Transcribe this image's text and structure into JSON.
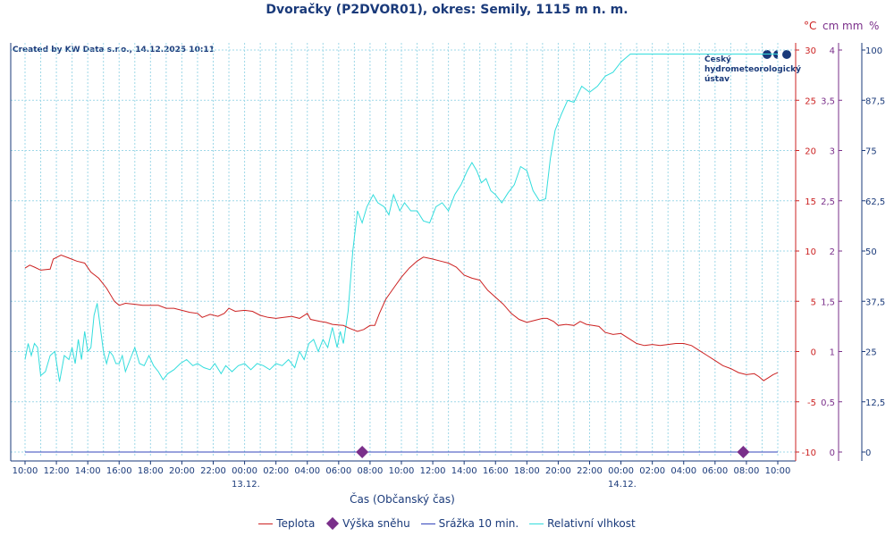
{
  "chart_data": {
    "type": "line",
    "title": "Dvoračky (P2DVOR01), okres: Semily, 1115 m n. m.",
    "credit": "Created by KW Data s.r.o., 14.12.2025 10:11",
    "xlabel": "Čas (Občanský čas)",
    "x_ticks": [
      "10:00",
      "12:00",
      "14:00",
      "16:00",
      "18:00",
      "20:00",
      "22:00",
      "00:00",
      "02:00",
      "04:00",
      "06:00",
      "08:00",
      "10:00",
      "12:00",
      "14:00",
      "16:00",
      "18:00",
      "20:00",
      "22:00",
      "00:00",
      "02:00",
      "04:00",
      "06:00",
      "08:00",
      "10:00"
    ],
    "x_range_hours": [
      0,
      48
    ],
    "date_labels": [
      {
        "label": "13.12.",
        "hour": 14
      },
      {
        "label": "14.12.",
        "hour": 38
      }
    ],
    "units": {
      "temp": "°C",
      "snow": "cm",
      "precip": "mm",
      "humidity": "%"
    },
    "axes": {
      "temp": {
        "range": [
          -10,
          30
        ],
        "ticks": [
          "-10",
          "-5",
          "0",
          "5",
          "10",
          "15",
          "20",
          "25",
          "30"
        ],
        "color": "#cc2222"
      },
      "snow": {
        "range": [
          0,
          4
        ],
        "ticks": [
          "0",
          "0,5",
          "1",
          "1,5",
          "2",
          "2,5",
          "3",
          "3,5",
          "4"
        ],
        "color": "#7a2f8a"
      },
      "humidity": {
        "range": [
          0,
          100
        ],
        "ticks": [
          "0",
          "12,5",
          "25",
          "37,5",
          "50",
          "62,5",
          "75",
          "87,5",
          "100"
        ],
        "color": "#1a3a7a"
      }
    },
    "series": [
      {
        "name": "Teplota",
        "axis": "temp",
        "color": "#cc2222",
        "points": [
          [
            0,
            8.3
          ],
          [
            0.3,
            8.6
          ],
          [
            0.6,
            8.4
          ],
          [
            1,
            8.1
          ],
          [
            1.6,
            8.2
          ],
          [
            1.8,
            9.2
          ],
          [
            2.3,
            9.6
          ],
          [
            2.8,
            9.3
          ],
          [
            3.3,
            9.0
          ],
          [
            3.8,
            8.8
          ],
          [
            4.2,
            7.9
          ],
          [
            4.7,
            7.3
          ],
          [
            5.2,
            6.3
          ],
          [
            5.7,
            5.0
          ],
          [
            6.0,
            4.6
          ],
          [
            6.4,
            4.8
          ],
          [
            7,
            4.7
          ],
          [
            7.5,
            4.6
          ],
          [
            8,
            4.6
          ],
          [
            8.5,
            4.6
          ],
          [
            9,
            4.3
          ],
          [
            9.5,
            4.3
          ],
          [
            10,
            4.1
          ],
          [
            10.5,
            3.9
          ],
          [
            11,
            3.8
          ],
          [
            11.3,
            3.4
          ],
          [
            11.8,
            3.7
          ],
          [
            12.3,
            3.5
          ],
          [
            12.7,
            3.8
          ],
          [
            13,
            4.3
          ],
          [
            13.4,
            4.0
          ],
          [
            14,
            4.1
          ],
          [
            14.5,
            4.0
          ],
          [
            15,
            3.6
          ],
          [
            15.5,
            3.4
          ],
          [
            16,
            3.3
          ],
          [
            16.5,
            3.4
          ],
          [
            17,
            3.5
          ],
          [
            17.5,
            3.3
          ],
          [
            18,
            3.8
          ],
          [
            18.2,
            3.2
          ],
          [
            18.8,
            3.0
          ],
          [
            19.2,
            2.9
          ],
          [
            19.6,
            2.7
          ],
          [
            20.3,
            2.6
          ],
          [
            20.7,
            2.3
          ],
          [
            21.2,
            2.0
          ],
          [
            21.6,
            2.2
          ],
          [
            22,
            2.6
          ],
          [
            22.3,
            2.6
          ],
          [
            22.6,
            3.8
          ],
          [
            23,
            5.2
          ],
          [
            23.5,
            6.3
          ],
          [
            24,
            7.4
          ],
          [
            24.5,
            8.3
          ],
          [
            25,
            9.0
          ],
          [
            25.4,
            9.4
          ],
          [
            26,
            9.2
          ],
          [
            26.5,
            9.0
          ],
          [
            27,
            8.8
          ],
          [
            27.5,
            8.4
          ],
          [
            28,
            7.6
          ],
          [
            28.5,
            7.3
          ],
          [
            29,
            7.1
          ],
          [
            29.5,
            6.1
          ],
          [
            30,
            5.4
          ],
          [
            30.5,
            4.7
          ],
          [
            31,
            3.8
          ],
          [
            31.5,
            3.2
          ],
          [
            32,
            2.9
          ],
          [
            32.5,
            3.1
          ],
          [
            33,
            3.3
          ],
          [
            33.3,
            3.3
          ],
          [
            33.7,
            3.0
          ],
          [
            34,
            2.6
          ],
          [
            34.5,
            2.7
          ],
          [
            35,
            2.6
          ],
          [
            35.4,
            3.0
          ],
          [
            35.8,
            2.7
          ],
          [
            36.2,
            2.6
          ],
          [
            36.6,
            2.5
          ],
          [
            37,
            1.9
          ],
          [
            37.5,
            1.7
          ],
          [
            38,
            1.8
          ],
          [
            38.5,
            1.3
          ],
          [
            39,
            0.8
          ],
          [
            39.5,
            0.6
          ],
          [
            40,
            0.7
          ],
          [
            40.5,
            0.6
          ],
          [
            41,
            0.7
          ],
          [
            41.5,
            0.8
          ],
          [
            42,
            0.8
          ],
          [
            42.5,
            0.6
          ],
          [
            43,
            0.1
          ],
          [
            43.5,
            -0.4
          ],
          [
            44,
            -0.9
          ],
          [
            44.5,
            -1.4
          ],
          [
            45,
            -1.7
          ],
          [
            45.5,
            -2.1
          ],
          [
            46,
            -2.3
          ],
          [
            46.5,
            -2.2
          ],
          [
            46.8,
            -2.5
          ],
          [
            47.1,
            -2.9
          ],
          [
            47.4,
            -2.6
          ],
          [
            47.7,
            -2.3
          ],
          [
            48,
            -2.1
          ]
        ]
      },
      {
        "name": "Relativní vlhkost",
        "axis": "humidity",
        "color": "#33dddd",
        "points": [
          [
            0,
            23.0
          ],
          [
            0.2,
            27.0
          ],
          [
            0.4,
            24.0
          ],
          [
            0.6,
            27.0
          ],
          [
            0.8,
            26.0
          ],
          [
            1,
            19.0
          ],
          [
            1.3,
            20.0
          ],
          [
            1.6,
            24.0
          ],
          [
            1.9,
            25.0
          ],
          [
            2.2,
            17.5
          ],
          [
            2.5,
            24.0
          ],
          [
            2.8,
            23.0
          ],
          [
            3.0,
            26.0
          ],
          [
            3.2,
            22.0
          ],
          [
            3.4,
            28.0
          ],
          [
            3.6,
            23.0
          ],
          [
            3.8,
            30.0
          ],
          [
            4.0,
            25.0
          ],
          [
            4.2,
            26.0
          ],
          [
            4.4,
            34.0
          ],
          [
            4.6,
            37.0
          ],
          [
            4.8,
            31.0
          ],
          [
            5.0,
            25.0
          ],
          [
            5.2,
            22.0
          ],
          [
            5.4,
            25.0
          ],
          [
            5.6,
            24.0
          ],
          [
            5.8,
            22.0
          ],
          [
            6.0,
            22.0
          ],
          [
            6.2,
            24.0
          ],
          [
            6.4,
            20.0
          ],
          [
            6.7,
            23.0
          ],
          [
            7.0,
            26.0
          ],
          [
            7.3,
            22.0
          ],
          [
            7.6,
            21.5
          ],
          [
            7.9,
            24.0
          ],
          [
            8.2,
            21.5
          ],
          [
            8.5,
            20.0
          ],
          [
            8.8,
            18.0
          ],
          [
            9.1,
            19.5
          ],
          [
            9.5,
            20.5
          ],
          [
            9.9,
            22.0
          ],
          [
            10.3,
            23.0
          ],
          [
            10.7,
            21.5
          ],
          [
            11.0,
            22.0
          ],
          [
            11.4,
            21.0
          ],
          [
            11.8,
            20.5
          ],
          [
            12.1,
            22.0
          ],
          [
            12.5,
            19.5
          ],
          [
            12.8,
            21.5
          ],
          [
            13.2,
            20.0
          ],
          [
            13.6,
            21.5
          ],
          [
            14.0,
            22.0
          ],
          [
            14.4,
            20.5
          ],
          [
            14.8,
            22.0
          ],
          [
            15.2,
            21.5
          ],
          [
            15.6,
            20.5
          ],
          [
            16.0,
            22.0
          ],
          [
            16.4,
            21.5
          ],
          [
            16.8,
            23.0
          ],
          [
            17.2,
            21.0
          ],
          [
            17.5,
            25.0
          ],
          [
            17.8,
            23.0
          ],
          [
            18.1,
            27.0
          ],
          [
            18.4,
            28.0
          ],
          [
            18.7,
            25.0
          ],
          [
            19.0,
            28.0
          ],
          [
            19.3,
            26.0
          ],
          [
            19.6,
            31.0
          ],
          [
            19.9,
            26.0
          ],
          [
            20.1,
            30.0
          ],
          [
            20.3,
            27.0
          ],
          [
            20.6,
            35.0
          ],
          [
            20.9,
            50.0
          ],
          [
            21.2,
            60.0
          ],
          [
            21.5,
            57.0
          ],
          [
            21.8,
            61.0
          ],
          [
            22.2,
            64.0
          ],
          [
            22.5,
            62.0
          ],
          [
            22.9,
            61.0
          ],
          [
            23.2,
            59.0
          ],
          [
            23.5,
            64.0
          ],
          [
            23.9,
            60.0
          ],
          [
            24.2,
            62.0
          ],
          [
            24.6,
            60.0
          ],
          [
            25.0,
            60.0
          ],
          [
            25.4,
            57.5
          ],
          [
            25.8,
            57.0
          ],
          [
            26.2,
            61.0
          ],
          [
            26.6,
            62.0
          ],
          [
            27.0,
            60.0
          ],
          [
            27.4,
            64.0
          ],
          [
            27.8,
            66.5
          ],
          [
            28.2,
            70.0
          ],
          [
            28.5,
            72.0
          ],
          [
            28.8,
            70.0
          ],
          [
            29.1,
            67.0
          ],
          [
            29.4,
            68.0
          ],
          [
            29.7,
            65.0
          ],
          [
            30.0,
            64.0
          ],
          [
            30.4,
            62.0
          ],
          [
            30.8,
            64.5
          ],
          [
            31.2,
            66.5
          ],
          [
            31.6,
            71.0
          ],
          [
            32.0,
            70.0
          ],
          [
            32.4,
            65.0
          ],
          [
            32.8,
            62.5
          ],
          [
            33.2,
            63.0
          ],
          [
            33.5,
            73.0
          ],
          [
            33.8,
            80.0
          ],
          [
            34.2,
            84.0
          ],
          [
            34.6,
            87.5
          ],
          [
            35.0,
            87.0
          ],
          [
            35.5,
            91.0
          ],
          [
            36.0,
            89.5
          ],
          [
            36.5,
            91.0
          ],
          [
            37.0,
            93.5
          ],
          [
            37.5,
            94.5
          ],
          [
            38.0,
            97.0
          ],
          [
            38.3,
            98.0
          ],
          [
            38.6,
            99.0
          ],
          [
            39,
            99.0
          ],
          [
            40,
            99.0
          ],
          [
            42,
            99.0
          ],
          [
            44,
            99.0
          ],
          [
            46,
            99.0
          ],
          [
            47,
            99.0
          ],
          [
            48,
            99.0
          ]
        ]
      },
      {
        "name": "Výška sněhu",
        "axis": "snow",
        "color": "#7a2f8a",
        "marker": "diamond",
        "points": [
          [
            21.5,
            0
          ],
          [
            45.8,
            0
          ]
        ]
      },
      {
        "name": "Srážka 10 min.",
        "axis": "snow",
        "color": "#3344bb",
        "points": [
          [
            0,
            0
          ],
          [
            48,
            0
          ]
        ]
      }
    ],
    "legend": [
      {
        "name": "Teplota",
        "style": "line",
        "color": "#cc2222"
      },
      {
        "name": "Výška sněhu",
        "style": "diamond",
        "color": "#7a2f8a"
      },
      {
        "name": "Srážka 10 min.",
        "style": "line",
        "color": "#3344bb"
      },
      {
        "name": "Relativní vlhkost",
        "style": "line",
        "color": "#33dddd"
      }
    ]
  },
  "logo": {
    "lines": [
      "Český",
      "hydrometeorologický",
      "ústav"
    ]
  }
}
